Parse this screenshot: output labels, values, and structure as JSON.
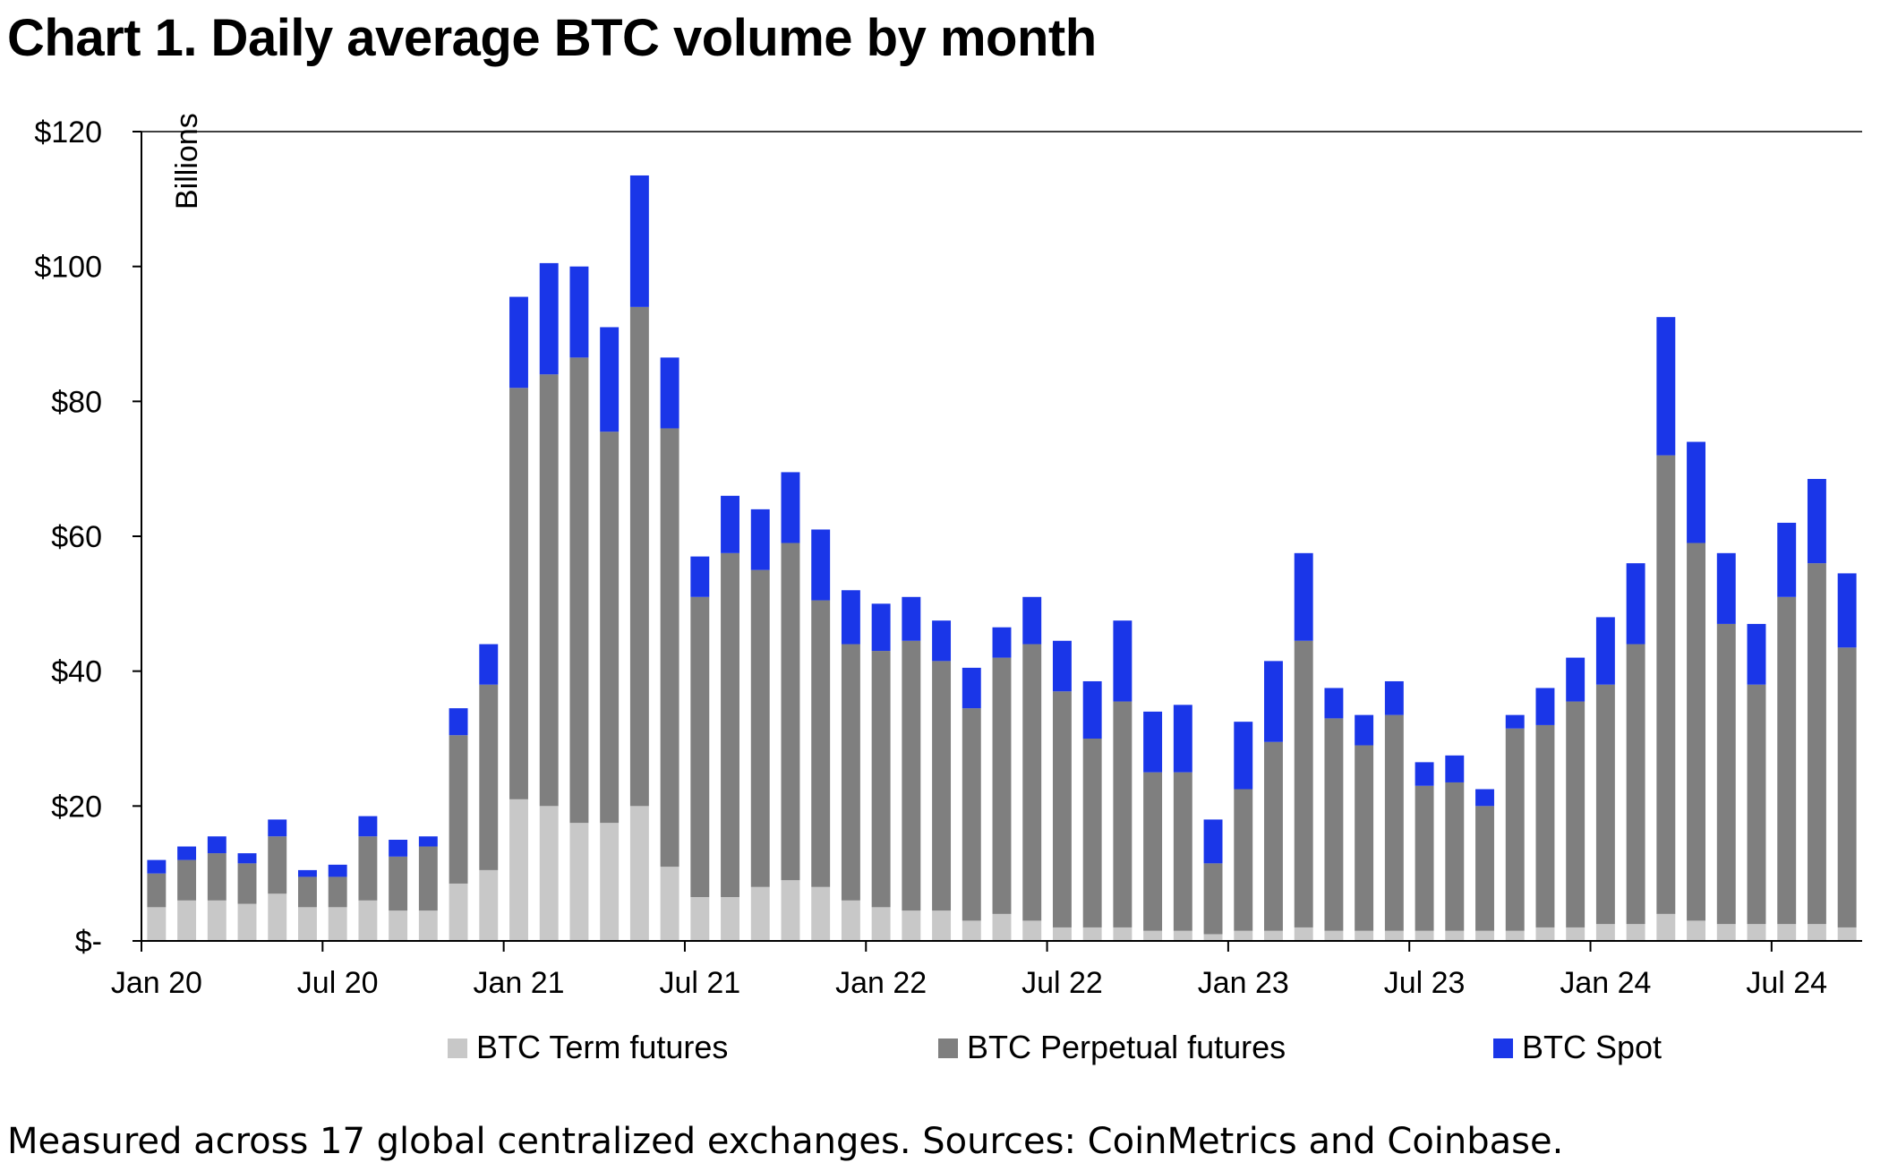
{
  "title": "Chart 1. Daily average BTC volume by month",
  "caption": "Measured across 17 global centralized exchanges. Sources: CoinMetrics and Coinbase.",
  "colors": {
    "term": "#c8c8c8",
    "perp": "#7f7f7f",
    "spot": "#1a36e8",
    "axis": "#000000",
    "grid": "#000000"
  },
  "chart_data": {
    "type": "bar",
    "stacked": true,
    "title": "Chart 1. Daily average BTC volume by month",
    "ylabel": "Billions",
    "xlabel": "",
    "ylim": [
      0,
      120
    ],
    "grid": true,
    "yticks": [
      {
        "value": 0,
        "label": "$-"
      },
      {
        "value": 20,
        "label": "$20"
      },
      {
        "value": 40,
        "label": "$40"
      },
      {
        "value": 60,
        "label": "$60"
      },
      {
        "value": 80,
        "label": "$80"
      },
      {
        "value": 100,
        "label": "$100"
      },
      {
        "value": 120,
        "label": "$120"
      }
    ],
    "xticks": [
      {
        "index": 0,
        "label": "Jan 20"
      },
      {
        "index": 6,
        "label": "Jul 20"
      },
      {
        "index": 12,
        "label": "Jan 21"
      },
      {
        "index": 18,
        "label": "Jul 21"
      },
      {
        "index": 24,
        "label": "Jan 22"
      },
      {
        "index": 30,
        "label": "Jul 22"
      },
      {
        "index": 36,
        "label": "Jan 23"
      },
      {
        "index": 42,
        "label": "Jul 23"
      },
      {
        "index": 48,
        "label": "Jan 24"
      },
      {
        "index": 54,
        "label": "Jul 24"
      }
    ],
    "categories": [
      "Jan 20",
      "Feb 20",
      "Mar 20",
      "Apr 20",
      "May 20",
      "Jun 20",
      "Jul 20",
      "Aug 20",
      "Sep 20",
      "Oct 20",
      "Nov 20",
      "Dec 20",
      "Jan 21",
      "Feb 21",
      "Mar 21",
      "Apr 21",
      "May 21",
      "Jun 21",
      "Jul 21",
      "Aug 21",
      "Sep 21",
      "Oct 21",
      "Nov 21",
      "Dec 21",
      "Jan 22",
      "Feb 22",
      "Mar 22",
      "Apr 22",
      "May 22",
      "Jun 22",
      "Jul 22",
      "Aug 22",
      "Sep 22",
      "Oct 22",
      "Nov 22",
      "Dec 22",
      "Jan 23",
      "Feb 23",
      "Mar 23",
      "Apr 23",
      "May 23",
      "Jun 23",
      "Jul 23",
      "Aug 23",
      "Sep 23",
      "Oct 23",
      "Nov 23",
      "Dec 23",
      "Jan 24",
      "Feb 24",
      "Mar 24",
      "Apr 24",
      "May 24",
      "Jun 24",
      "Jul 24",
      "Aug 24",
      "Sep 24"
    ],
    "legend_position": "bottom",
    "series": [
      {
        "name": "BTC Term futures",
        "color_key": "term",
        "values": [
          5,
          6,
          6,
          5.5,
          7,
          5,
          5,
          6,
          4.5,
          4.5,
          8.5,
          10.5,
          21,
          20,
          17.5,
          17.5,
          20,
          11,
          6.5,
          6.5,
          8,
          9,
          8,
          6,
          5,
          4.5,
          4.5,
          3,
          4,
          3,
          2,
          2,
          2,
          1.5,
          1.5,
          1,
          1.5,
          1.5,
          2,
          1.5,
          1.5,
          1.5,
          1.5,
          1.5,
          1.5,
          1.5,
          2,
          2,
          2.5,
          2.5,
          4,
          3,
          2.5,
          2.5,
          2.5,
          2.5,
          2
        ]
      },
      {
        "name": "BTC Perpetual futures",
        "color_key": "perp",
        "values": [
          5,
          6,
          7,
          6,
          8.5,
          4.5,
          4.5,
          9.5,
          8,
          9.5,
          22,
          27.5,
          61,
          64,
          69,
          58,
          74,
          65,
          44.5,
          51,
          47,
          50,
          42.5,
          38,
          38,
          40,
          37,
          31.5,
          38,
          41,
          35,
          28,
          33.5,
          23.5,
          23.5,
          10.5,
          21,
          28,
          42.5,
          31.5,
          27.5,
          32,
          21.5,
          22,
          18.5,
          30,
          30,
          33.5,
          35.5,
          41.5,
          68,
          56,
          44.5,
          35.5,
          48.5,
          53.5,
          41.5
        ]
      },
      {
        "name": "BTC Spot",
        "color_key": "spot",
        "values": [
          2,
          2,
          2.5,
          1.5,
          2.5,
          1,
          1.8,
          3,
          2.5,
          1.5,
          4,
          6,
          13.5,
          16.5,
          13.5,
          15.5,
          19.5,
          10.5,
          6,
          8.5,
          9,
          10.5,
          10.5,
          8,
          7,
          6.5,
          6,
          6,
          4.5,
          7,
          7.5,
          8.5,
          12,
          9,
          10,
          6.5,
          10,
          12,
          13,
          4.5,
          4.5,
          5,
          3.5,
          4,
          2.5,
          2,
          5.5,
          6.5,
          10,
          12,
          20.5,
          15,
          10.5,
          9,
          11,
          12.5,
          11
        ]
      }
    ]
  }
}
